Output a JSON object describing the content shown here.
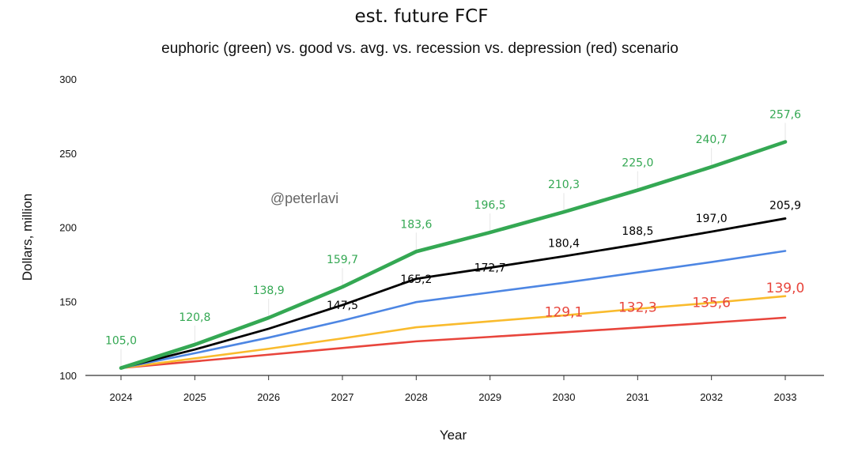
{
  "chart_data": {
    "type": "line",
    "title": "est. future FCF",
    "subtitle": "euphoric (green) vs. good vs. avg. vs. recession vs. depression (red) scenario",
    "xlabel": "Year",
    "ylabel": "Dollars, million",
    "watermark": "@peterlavi",
    "ylim": [
      100,
      300
    ],
    "yticks": [
      "100",
      "150",
      "200",
      "250",
      "300"
    ],
    "categories": [
      "2024",
      "2025",
      "2026",
      "2027",
      "2028",
      "2029",
      "2030",
      "2031",
      "2032",
      "2033"
    ],
    "grid": false,
    "series": [
      {
        "color": "#e8453c",
        "values": [
          105.0,
          109.5,
          114.0,
          118.5,
          123.0,
          126.0,
          129.1,
          132.3,
          135.6,
          139.0
        ],
        "labels": [
          "",
          "",
          "",
          "",
          "",
          "",
          "129,1",
          "132,3",
          "135,6",
          "139,0"
        ]
      },
      {
        "color": "#f9bb2d",
        "values": [
          105.0,
          111.5,
          118.0,
          125.0,
          132.5,
          136.5,
          140.5,
          145.0,
          149.0,
          153.5
        ],
        "labels": [
          "",
          "",
          "",
          "",
          "",
          "",
          "",
          "",
          "",
          ""
        ]
      },
      {
        "color": "#4d86e3",
        "values": [
          105.0,
          115.0,
          125.5,
          137.0,
          149.5,
          156.0,
          162.5,
          169.5,
          176.5,
          184.0
        ],
        "labels": [
          "",
          "",
          "",
          "",
          "",
          "",
          "",
          "",
          "",
          ""
        ]
      },
      {
        "color": "#000000",
        "values": [
          105.0,
          117.5,
          131.5,
          147.5,
          165.2,
          172.7,
          180.4,
          188.5,
          197.0,
          205.9
        ],
        "labels": [
          "",
          "",
          "",
          "147,5",
          "165,2",
          "172,7",
          "180,4",
          "188,5",
          "197,0",
          "205,9"
        ]
      },
      {
        "color": "#34a853",
        "values": [
          105.0,
          120.8,
          138.9,
          159.7,
          183.6,
          196.5,
          210.3,
          225.0,
          240.7,
          257.6
        ],
        "labels": [
          "105,0",
          "120,8",
          "138,9",
          "159,7",
          "183,6",
          "196,5",
          "210,3",
          "225,0",
          "240,7",
          "257,6"
        ]
      }
    ]
  }
}
